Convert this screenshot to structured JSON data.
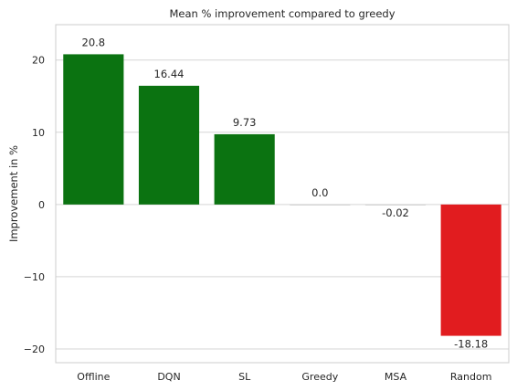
{
  "chart_data": {
    "type": "bar",
    "title": "Mean % improvement compared to greedy",
    "xlabel": "",
    "ylabel": "Improvement in %",
    "categories": [
      "Offline",
      "DQN",
      "SL",
      "Greedy",
      "MSA",
      "Random"
    ],
    "values": [
      20.8,
      16.44,
      9.73,
      0.0,
      -0.02,
      -18.18
    ],
    "data_labels": [
      "20.8",
      "16.44",
      "9.73",
      "0.0",
      "-0.02",
      "-18.18"
    ],
    "yticks": [
      -20,
      -10,
      0,
      10,
      20
    ],
    "ytick_labels": [
      "−20",
      "−10",
      "0",
      "10",
      "20"
    ],
    "ylim": [
      -21.9,
      24.9
    ],
    "grid": "horizontal",
    "legend": "none",
    "colors": {
      "positive": "#0b7311",
      "neutral": "#cfcfcf",
      "negative": "#e11c1f",
      "grid": "#d5d5d5",
      "axes_edge": "#cccccc"
    }
  }
}
